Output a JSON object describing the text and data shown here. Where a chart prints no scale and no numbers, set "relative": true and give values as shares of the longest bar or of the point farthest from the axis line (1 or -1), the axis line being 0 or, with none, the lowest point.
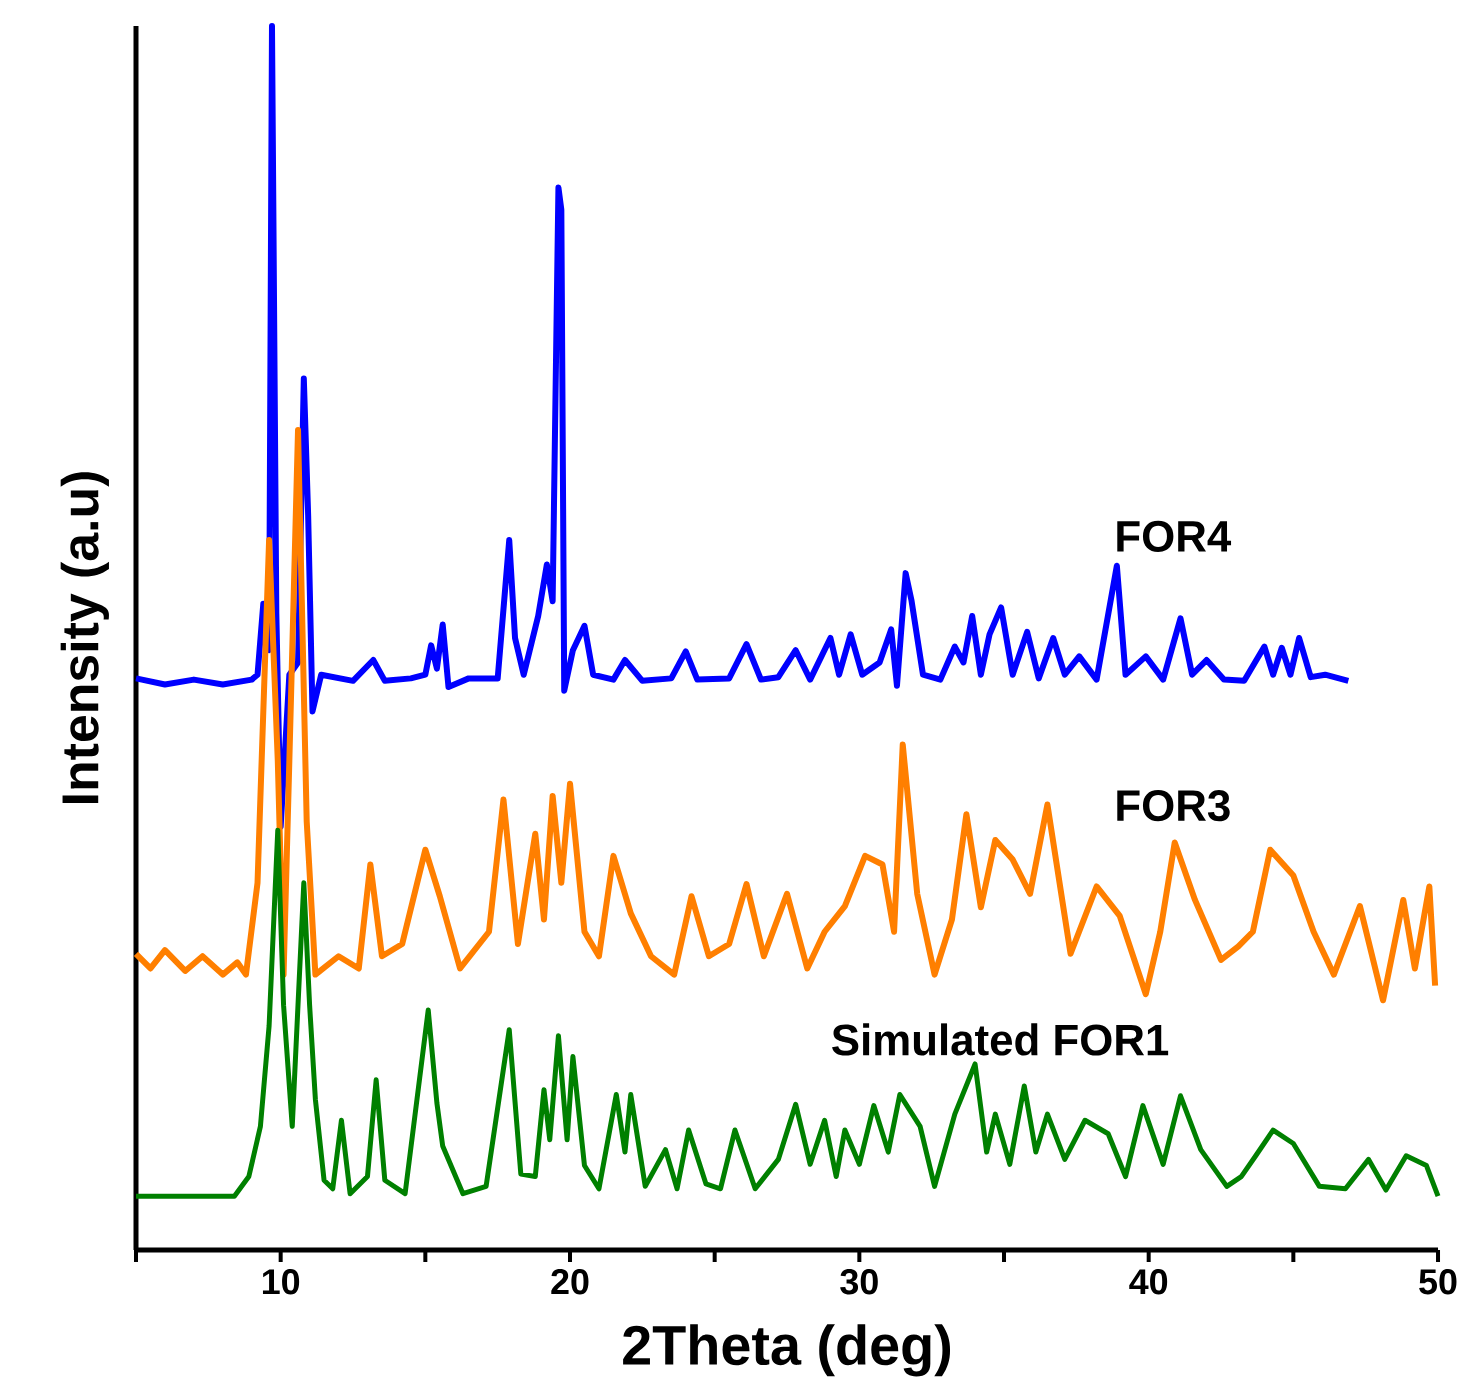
{
  "chart_data": {
    "type": "line",
    "relative": true,
    "xlabel": "2Theta (deg)",
    "ylabel": "Intensity (a.u)",
    "xlim": [
      5,
      50
    ],
    "xticks": [
      {
        "value": 5,
        "label": null
      },
      10,
      {
        "value": 15,
        "label": null
      },
      20,
      {
        "value": 25,
        "label": null
      },
      30,
      {
        "value": 35,
        "label": null
      },
      40,
      {
        "value": 45,
        "label": null
      },
      50
    ],
    "grid": false,
    "marker": "none",
    "line_style": "solid",
    "series": [
      {
        "name": "FOR4",
        "color": "#0000ff",
        "x": [
          5,
          6,
          7,
          8,
          9,
          9.2,
          9.4,
          9.6,
          9.7,
          9.85,
          10.0,
          10.3,
          10.6,
          10.8,
          10.95,
          11.1,
          11.4,
          12.5,
          13.2,
          13.6,
          14.5,
          15.0,
          15.2,
          15.4,
          15.6,
          15.8,
          16.5,
          17.5,
          17.9,
          18.1,
          18.4,
          18.9,
          19.2,
          19.4,
          19.6,
          19.7,
          19.8,
          20.1,
          20.5,
          20.8,
          21.5,
          21.9,
          22.5,
          23.5,
          24.0,
          24.4,
          25.5,
          26.1,
          26.6,
          27.2,
          27.8,
          28.3,
          29.0,
          29.3,
          29.7,
          30.1,
          30.7,
          31.1,
          31.3,
          31.6,
          31.8,
          32.2,
          32.8,
          33.3,
          33.6,
          33.9,
          34.2,
          34.5,
          34.9,
          35.3,
          35.8,
          36.2,
          36.7,
          37.1,
          37.6,
          38.2,
          38.9,
          39.2,
          39.9,
          40.5,
          41.1,
          41.5,
          42.0,
          42.6,
          43.3,
          44.0,
          44.3,
          44.6,
          44.9,
          45.2,
          45.6,
          46.1,
          46.9
        ],
        "values": [
          0.467,
          0.462,
          0.466,
          0.462,
          0.466,
          0.47,
          0.528,
          0.49,
          1.0,
          0.52,
          0.346,
          0.47,
          0.48,
          0.712,
          0.6,
          0.44,
          0.47,
          0.465,
          0.482,
          0.465,
          0.467,
          0.47,
          0.494,
          0.475,
          0.511,
          0.46,
          0.467,
          0.467,
          0.58,
          0.5,
          0.47,
          0.518,
          0.56,
          0.53,
          0.868,
          0.85,
          0.457,
          0.49,
          0.51,
          0.47,
          0.466,
          0.482,
          0.465,
          0.467,
          0.489,
          0.466,
          0.467,
          0.495,
          0.466,
          0.468,
          0.49,
          0.466,
          0.5,
          0.47,
          0.503,
          0.47,
          0.48,
          0.507,
          0.461,
          0.553,
          0.531,
          0.47,
          0.466,
          0.493,
          0.48,
          0.518,
          0.47,
          0.503,
          0.525,
          0.47,
          0.505,
          0.467,
          0.5,
          0.47,
          0.485,
          0.466,
          0.559,
          0.47,
          0.485,
          0.466,
          0.516,
          0.47,
          0.482,
          0.466,
          0.465,
          0.493,
          0.47,
          0.492,
          0.47,
          0.5,
          0.468,
          0.47,
          0.465
        ]
      },
      {
        "name": "FOR3",
        "color": "#ff7f00",
        "x": [
          5,
          5.5,
          6,
          6.7,
          7.3,
          8,
          8.5,
          8.8,
          9.2,
          9.6,
          9.9,
          10.1,
          10.3,
          10.6,
          10.9,
          11.2,
          12,
          12.7,
          13.1,
          13.5,
          14.2,
          15.0,
          15.5,
          16.2,
          17.2,
          17.7,
          18.2,
          18.8,
          19.1,
          19.4,
          19.7,
          20.0,
          20.5,
          21.0,
          21.5,
          22.1,
          22.8,
          23.6,
          24.2,
          24.8,
          25.5,
          26.1,
          26.7,
          27.5,
          28.2,
          28.8,
          29.5,
          30.2,
          30.8,
          31.2,
          31.5,
          32.0,
          32.6,
          33.2,
          33.7,
          34.2,
          34.7,
          35.3,
          35.9,
          36.5,
          37.3,
          38.2,
          39.0,
          39.9,
          40.4,
          40.9,
          41.6,
          42.5,
          43.1,
          43.6,
          44.2,
          45.0,
          45.7,
          46.4,
          47.3,
          48.1,
          48.8,
          49.2,
          49.7,
          49.9
        ],
        "values": [
          0.242,
          0.23,
          0.245,
          0.228,
          0.24,
          0.225,
          0.235,
          0.225,
          0.3,
          0.58,
          0.4,
          0.225,
          0.4,
          0.67,
          0.35,
          0.225,
          0.24,
          0.23,
          0.315,
          0.24,
          0.25,
          0.327,
          0.289,
          0.23,
          0.26,
          0.368,
          0.25,
          0.34,
          0.27,
          0.371,
          0.3,
          0.381,
          0.26,
          0.24,
          0.322,
          0.275,
          0.24,
          0.225,
          0.289,
          0.24,
          0.25,
          0.299,
          0.24,
          0.291,
          0.23,
          0.26,
          0.281,
          0.322,
          0.315,
          0.26,
          0.413,
          0.291,
          0.225,
          0.27,
          0.356,
          0.28,
          0.335,
          0.319,
          0.291,
          0.364,
          0.242,
          0.297,
          0.273,
          0.209,
          0.26,
          0.333,
          0.286,
          0.237,
          0.248,
          0.26,
          0.327,
          0.306,
          0.26,
          0.225,
          0.281,
          0.204,
          0.286,
          0.23,
          0.297,
          0.216
        ]
      },
      {
        "name": "Simulated FOR1",
        "color": "#008000",
        "x": [
          5,
          7,
          8.4,
          8.9,
          9.3,
          9.6,
          9.9,
          10.1,
          10.4,
          10.8,
          11.0,
          11.2,
          11.5,
          11.8,
          12.1,
          12.4,
          13.0,
          13.3,
          13.6,
          14.3,
          15.1,
          15.4,
          15.6,
          16.3,
          17.1,
          17.9,
          18.3,
          18.8,
          19.1,
          19.3,
          19.6,
          19.9,
          20.1,
          20.5,
          21.0,
          21.6,
          21.9,
          22.1,
          22.6,
          23.3,
          23.7,
          24.1,
          24.7,
          25.2,
          25.7,
          26.4,
          27.2,
          27.8,
          28.3,
          28.8,
          29.2,
          29.5,
          30.0,
          30.5,
          31.0,
          31.4,
          32.1,
          32.6,
          33.3,
          34.0,
          34.4,
          34.7,
          35.2,
          35.7,
          36.1,
          36.5,
          37.1,
          37.8,
          38.6,
          39.2,
          39.8,
          40.5,
          41.1,
          41.8,
          42.7,
          43.2,
          43.7,
          44.3,
          45.0,
          45.9,
          46.8,
          47.6,
          48.2,
          48.9,
          49.6,
          50
        ],
        "values": [
          0.044,
          0.044,
          0.044,
          0.06,
          0.101,
          0.183,
          0.343,
          0.2,
          0.101,
          0.3,
          0.2,
          0.123,
          0.057,
          0.05,
          0.106,
          0.046,
          0.06,
          0.139,
          0.057,
          0.046,
          0.196,
          0.12,
          0.085,
          0.046,
          0.052,
          0.18,
          0.062,
          0.06,
          0.131,
          0.09,
          0.175,
          0.09,
          0.158,
          0.069,
          0.05,
          0.127,
          0.08,
          0.127,
          0.052,
          0.082,
          0.05,
          0.098,
          0.054,
          0.05,
          0.098,
          0.05,
          0.074,
          0.119,
          0.07,
          0.106,
          0.06,
          0.098,
          0.07,
          0.118,
          0.08,
          0.127,
          0.101,
          0.052,
          0.111,
          0.152,
          0.08,
          0.111,
          0.07,
          0.134,
          0.08,
          0.111,
          0.074,
          0.106,
          0.095,
          0.06,
          0.118,
          0.07,
          0.126,
          0.082,
          0.052,
          0.06,
          0.077,
          0.098,
          0.087,
          0.052,
          0.05,
          0.074,
          0.049,
          0.077,
          0.069,
          0.044
        ]
      }
    ]
  }
}
